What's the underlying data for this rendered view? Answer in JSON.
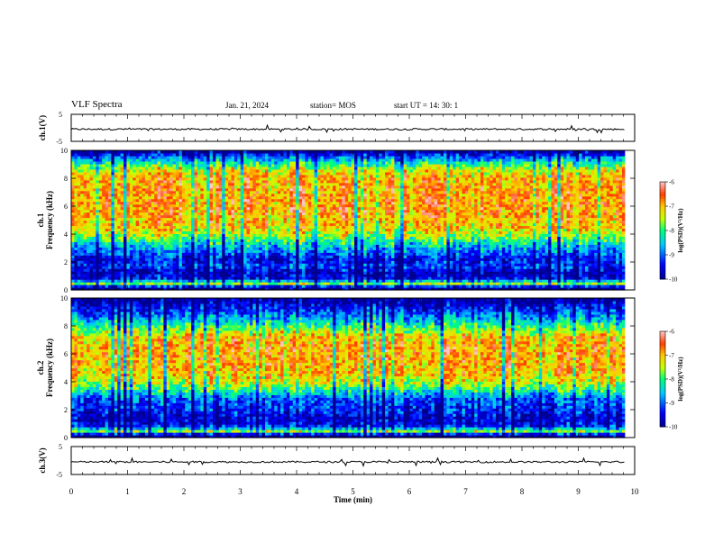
{
  "header": {
    "title": "VLF Spectra",
    "date": "Jan. 21, 2024",
    "station": "station= MOS",
    "start": "start UT =   14: 30: 1"
  },
  "chart_data": [
    {
      "type": "line",
      "ylabel": "ch.1(V)",
      "ylim": [
        -5,
        5
      ],
      "yticks": [
        "5",
        "-5"
      ],
      "series": [
        {
          "values_description_level": -0.5
        }
      ]
    },
    {
      "type": "heatmap",
      "ylabel_line1": "ch.1",
      "ylabel_line2": "Frequency (kHz)",
      "ylim": [
        0,
        10
      ],
      "yticks": [
        "0",
        "2",
        "4",
        "6",
        "8",
        "10"
      ],
      "colorbar": {
        "label": "log(PSD)(V²/Hz)",
        "ticks": [
          "-6",
          "-7",
          "-8",
          "-9",
          "-10"
        ],
        "range": [
          -10,
          -6
        ]
      },
      "band_profile": [
        {
          "f": 0.2,
          "v": -10
        },
        {
          "f": 0.5,
          "v": -7.5
        },
        {
          "f": 0.8,
          "v": -9.5
        },
        {
          "f": 1.2,
          "v": -9.8
        },
        {
          "f": 1.7,
          "v": -9.2
        },
        {
          "f": 2.2,
          "v": -9.5
        },
        {
          "f": 2.7,
          "v": -9.0
        },
        {
          "f": 3.3,
          "v": -8.4
        },
        {
          "f": 3.9,
          "v": -7.6
        },
        {
          "f": 4.5,
          "v": -7.1
        },
        {
          "f": 6.0,
          "v": -6.8
        },
        {
          "f": 8.0,
          "v": -6.9
        },
        {
          "f": 8.7,
          "v": -7.4
        },
        {
          "f": 9.1,
          "v": -8.2
        },
        {
          "f": 9.5,
          "v": -8.9
        },
        {
          "f": 9.9,
          "v": -9.8
        }
      ]
    },
    {
      "type": "heatmap",
      "ylabel_line1": "ch.2",
      "ylabel_line2": "Frequency (kHz)",
      "ylim": [
        0,
        10
      ],
      "yticks": [
        "0",
        "2",
        "4",
        "6",
        "8",
        "10"
      ],
      "colorbar": {
        "label": "log(PSD)(V²/Hz)",
        "ticks": [
          "-6",
          "-7",
          "-8",
          "-9",
          "-10"
        ],
        "range": [
          -10,
          -6
        ]
      },
      "band_profile": [
        {
          "f": 0.2,
          "v": -10
        },
        {
          "f": 0.5,
          "v": -7.5
        },
        {
          "f": 0.8,
          "v": -9.3
        },
        {
          "f": 1.3,
          "v": -9.7
        },
        {
          "f": 2.0,
          "v": -9.3
        },
        {
          "f": 2.8,
          "v": -9.0
        },
        {
          "f": 3.3,
          "v": -8.3
        },
        {
          "f": 3.9,
          "v": -7.5
        },
        {
          "f": 4.6,
          "v": -7.0
        },
        {
          "f": 6.0,
          "v": -6.8
        },
        {
          "f": 7.2,
          "v": -7.0
        },
        {
          "f": 7.9,
          "v": -7.8
        },
        {
          "f": 8.4,
          "v": -8.5
        },
        {
          "f": 9.0,
          "v": -9.1
        },
        {
          "f": 9.6,
          "v": -9.6
        },
        {
          "f": 9.9,
          "v": -9.9
        }
      ]
    },
    {
      "type": "line",
      "ylabel": "ch.3(V)",
      "ylim": [
        -5,
        5
      ],
      "yticks": [
        "5",
        "-5"
      ],
      "series": [
        {
          "values_description_level": -0.5
        }
      ]
    }
  ],
  "xaxis": {
    "label": "Time (min)",
    "xlim": [
      0,
      10
    ],
    "ticks": [
      "0",
      "1",
      "2",
      "3",
      "4",
      "5",
      "6",
      "7",
      "8",
      "9",
      "10"
    ],
    "data_end": 9.83
  }
}
